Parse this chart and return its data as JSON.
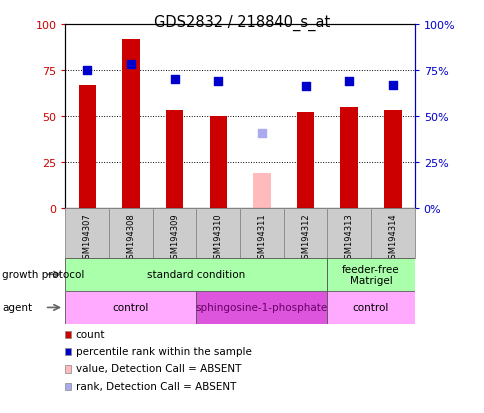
{
  "title": "GDS2832 / 218840_s_at",
  "samples": [
    "GSM194307",
    "GSM194308",
    "GSM194309",
    "GSM194310",
    "GSM194311",
    "GSM194312",
    "GSM194313",
    "GSM194314"
  ],
  "bar_values": [
    67,
    92,
    53,
    50,
    19,
    52,
    55,
    53
  ],
  "bar_colors": [
    "#cc0000",
    "#cc0000",
    "#cc0000",
    "#cc0000",
    "#ffbbbb",
    "#cc0000",
    "#cc0000",
    "#cc0000"
  ],
  "bar_absent": [
    false,
    false,
    false,
    false,
    true,
    false,
    false,
    false
  ],
  "rank_values": [
    75,
    78,
    70,
    69,
    41,
    66,
    69,
    67
  ],
  "rank_absent": [
    false,
    false,
    false,
    false,
    true,
    false,
    false,
    false
  ],
  "ylim": [
    0,
    100
  ],
  "yticks": [
    0,
    25,
    50,
    75,
    100
  ],
  "ytick_labels_right": [
    "0%",
    "25%",
    "50%",
    "75%",
    "100%"
  ],
  "grid_lines": [
    25,
    50,
    75
  ],
  "growth_protocol_groups": [
    {
      "label": "standard condition",
      "start": 0,
      "end": 6,
      "color": "#aaffaa"
    },
    {
      "label": "feeder-free\nMatrigel",
      "start": 6,
      "end": 8,
      "color": "#aaffaa"
    }
  ],
  "agent_groups": [
    {
      "label": "control",
      "start": 0,
      "end": 3,
      "color": "#ffaaff"
    },
    {
      "label": "sphingosine-1-phosphate",
      "start": 3,
      "end": 6,
      "color": "#dd55dd"
    },
    {
      "label": "control",
      "start": 6,
      "end": 8,
      "color": "#ffaaff"
    }
  ],
  "legend_items": [
    {
      "color": "#cc0000",
      "label": "count"
    },
    {
      "color": "#0000cc",
      "label": "percentile rank within the sample"
    },
    {
      "color": "#ffbbbb",
      "label": "value, Detection Call = ABSENT"
    },
    {
      "color": "#aaaaee",
      "label": "rank, Detection Call = ABSENT"
    }
  ],
  "left_axis_color": "#cc0000",
  "right_axis_color": "#0000cc",
  "rank_color_present": "#0000cc",
  "rank_color_absent": "#aaaaee",
  "bar_width": 0.4,
  "fig_width": 4.85,
  "fig_height": 4.14,
  "dpi": 100
}
